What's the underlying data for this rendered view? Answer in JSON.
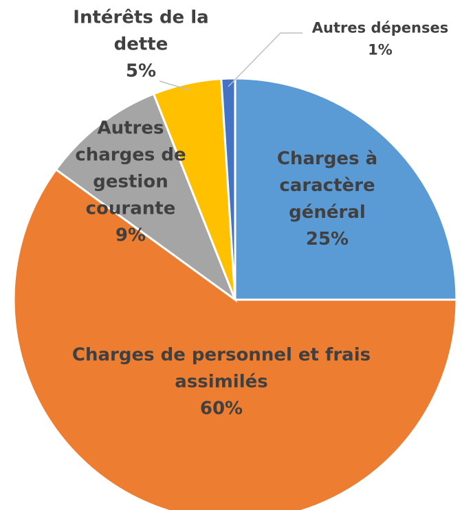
{
  "chart_data": {
    "type": "pie",
    "categories": [
      "Charges à caractère général",
      "Charges de personnel et frais assimilés",
      "Autres charges de gestion courante",
      "Intérêts de la dette",
      "Autres dépenses"
    ],
    "values": [
      25,
      60,
      9,
      5,
      1
    ],
    "value_labels": [
      "25%",
      "60%",
      "9%",
      "5%",
      "1%"
    ],
    "colors": [
      "#5b9bd5",
      "#ed7d31",
      "#a5a5a5",
      "#ffc000",
      "#4472c4"
    ]
  }
}
